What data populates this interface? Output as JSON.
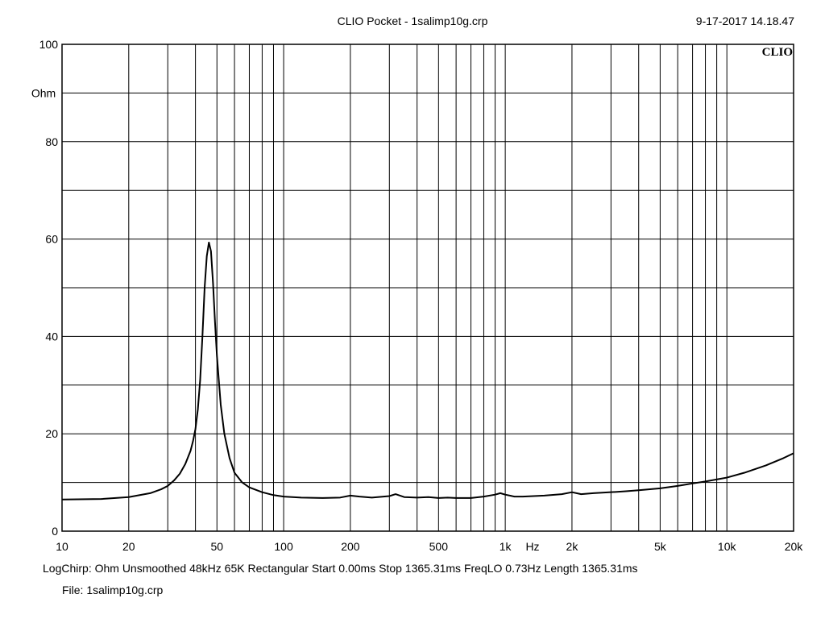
{
  "header": {
    "title": "CLIO Pocket - 1salimp10g.crp",
    "datetime": "9-17-2017 14.18.47"
  },
  "footer": {
    "status": "LogChirp:  Ohm   Unsmoothed   48kHz   65K   Rectangular   Start 0.00ms    Stop 1365.31ms    FreqLO 0.73Hz    Length 1365.31ms",
    "file": "File: 1salimp10g.crp"
  },
  "chart_data": {
    "type": "line",
    "title": "CLIO Pocket - 1salimp10g.crp",
    "logo": "CLIO",
    "xlabel": "Hz",
    "ylabel": "Ohm",
    "xscale": "log",
    "xlim": [
      10,
      20000
    ],
    "ylim": [
      0,
      100
    ],
    "grid": true,
    "x_tick_labels": [
      {
        "value": 10,
        "label": "10"
      },
      {
        "value": 20,
        "label": "20"
      },
      {
        "value": 50,
        "label": "50"
      },
      {
        "value": 100,
        "label": "100"
      },
      {
        "value": 200,
        "label": "200"
      },
      {
        "value": 500,
        "label": "500"
      },
      {
        "value": 1000,
        "label": "1k"
      },
      {
        "value": 2000,
        "label": "2k"
      },
      {
        "value": 5000,
        "label": "5k"
      },
      {
        "value": 10000,
        "label": "10k"
      },
      {
        "value": 20000,
        "label": "20k"
      }
    ],
    "y_tick_labels": [
      {
        "value": 0,
        "label": "0"
      },
      {
        "value": 20,
        "label": "20"
      },
      {
        "value": 40,
        "label": "40"
      },
      {
        "value": 60,
        "label": "60"
      },
      {
        "value": 80,
        "label": "80"
      },
      {
        "value": 100,
        "label": "100"
      }
    ],
    "series": [
      {
        "color": "#000000",
        "x": [
          10,
          15,
          20,
          25,
          28,
          30,
          32,
          34,
          36,
          38,
          39,
          40,
          41,
          42,
          43,
          44,
          45,
          46,
          47,
          48,
          49,
          50,
          52,
          54,
          57,
          60,
          65,
          70,
          80,
          90,
          100,
          120,
          150,
          180,
          200,
          220,
          250,
          300,
          320,
          350,
          400,
          450,
          500,
          550,
          600,
          700,
          800,
          900,
          950,
          1000,
          1100,
          1200,
          1500,
          1800,
          2000,
          2200,
          2500,
          3000,
          3500,
          4000,
          5000,
          6000,
          7000,
          8000,
          10000,
          12000,
          15000,
          18000,
          20000
        ],
        "y": [
          6.5,
          6.6,
          7.0,
          7.8,
          8.6,
          9.3,
          10.4,
          11.8,
          13.8,
          16.5,
          18.5,
          21.0,
          25.0,
          31.0,
          40.0,
          50.0,
          56.5,
          59.3,
          57.5,
          51.0,
          43.0,
          36.0,
          26.0,
          20.0,
          15.0,
          12.0,
          10.0,
          9.0,
          8.0,
          7.4,
          7.1,
          6.9,
          6.8,
          6.9,
          7.3,
          7.1,
          6.9,
          7.2,
          7.6,
          7.0,
          6.9,
          7.0,
          6.8,
          6.9,
          6.8,
          6.8,
          7.1,
          7.5,
          7.8,
          7.5,
          7.1,
          7.1,
          7.3,
          7.6,
          8.0,
          7.6,
          7.8,
          8.0,
          8.2,
          8.4,
          8.8,
          9.3,
          9.8,
          10.2,
          11.0,
          12.0,
          13.5,
          15.0,
          16.0
        ]
      }
    ]
  }
}
